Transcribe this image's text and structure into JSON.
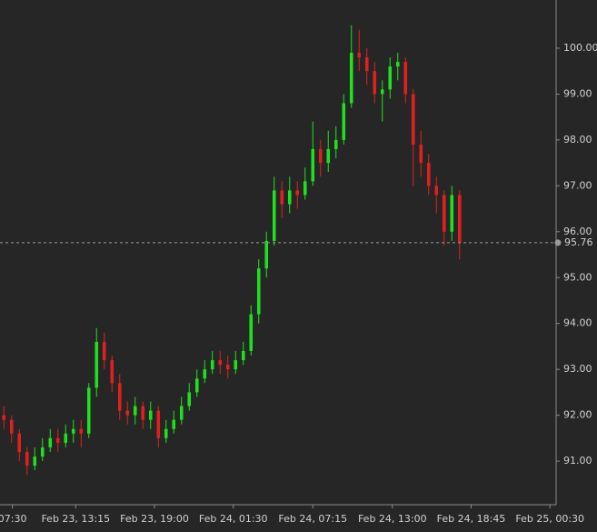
{
  "chart_data": {
    "type": "candlestick",
    "up_color": "#1ee01e",
    "down_color": "#e02020",
    "x": [
      0.5,
      1.5,
      2.5,
      3.5,
      4.5,
      5.5,
      6.5,
      7.5,
      8.5,
      9.5,
      10.5,
      11.5,
      12.5,
      13.5,
      14.5,
      15.5,
      16.5,
      17.5,
      18.5,
      19.5,
      20.5,
      21.5,
      22.5,
      23.5,
      24.5,
      25.5,
      26.5,
      27.5,
      28.5,
      29.5,
      30.5,
      31.5,
      32.5,
      33.5,
      34.5,
      35.5,
      36.5,
      37.5,
      38.5,
      39.5,
      40.5,
      41.5,
      42.5,
      43.5,
      44.5,
      45.5,
      46.5,
      47.5,
      48.5,
      49.5,
      50.5,
      51.5,
      52.5,
      53.5,
      54.5,
      55.5,
      56.5,
      57.5,
      58.5,
      59.5
    ],
    "open": [
      92.0,
      91.9,
      91.6,
      91.2,
      90.9,
      91.1,
      91.3,
      91.5,
      91.4,
      91.6,
      91.7,
      91.6,
      92.6,
      93.6,
      93.2,
      92.7,
      92.1,
      92.0,
      92.2,
      91.9,
      92.1,
      91.5,
      91.7,
      91.9,
      92.2,
      92.5,
      92.8,
      93.0,
      93.2,
      93.1,
      93.0,
      93.2,
      93.4,
      94.2,
      95.2,
      95.8,
      96.9,
      96.6,
      96.9,
      96.8,
      97.1,
      97.8,
      97.5,
      97.8,
      98.0,
      98.8,
      99.9,
      99.8,
      99.5,
      99.0,
      99.1,
      99.6,
      99.7,
      99.0,
      97.9,
      97.5,
      97.0,
      96.8,
      96.0,
      96.8
    ],
    "high": [
      92.2,
      92.0,
      91.7,
      91.3,
      91.3,
      91.5,
      91.7,
      91.7,
      91.8,
      91.9,
      91.9,
      92.7,
      93.9,
      93.8,
      93.3,
      92.9,
      92.3,
      92.4,
      92.3,
      92.3,
      92.2,
      91.9,
      92.1,
      92.4,
      92.7,
      93.0,
      93.2,
      93.4,
      93.4,
      93.3,
      93.4,
      93.6,
      94.4,
      95.4,
      96.0,
      97.2,
      97.1,
      97.2,
      97.1,
      97.4,
      98.4,
      98.0,
      98.2,
      98.3,
      99.0,
      100.5,
      100.4,
      100.0,
      99.7,
      99.3,
      99.8,
      99.9,
      99.8,
      99.1,
      98.2,
      97.7,
      97.2,
      96.9,
      97.0,
      96.9
    ],
    "low": [
      91.7,
      91.4,
      91.0,
      90.7,
      90.8,
      91.0,
      91.2,
      91.2,
      91.3,
      91.4,
      91.3,
      91.5,
      92.4,
      93.0,
      92.5,
      91.9,
      91.8,
      91.8,
      91.7,
      91.7,
      91.3,
      91.4,
      91.6,
      91.8,
      92.1,
      92.4,
      92.7,
      92.9,
      92.9,
      92.8,
      92.9,
      93.1,
      93.3,
      94.0,
      95.0,
      95.7,
      96.3,
      96.4,
      96.5,
      96.7,
      97.0,
      97.2,
      97.3,
      97.6,
      97.9,
      98.7,
      99.5,
      99.2,
      98.8,
      98.4,
      98.9,
      99.3,
      98.8,
      97.0,
      97.2,
      96.8,
      96.4,
      95.7,
      95.8,
      95.4
    ],
    "close": [
      91.9,
      91.6,
      91.2,
      90.9,
      91.1,
      91.3,
      91.5,
      91.4,
      91.6,
      91.7,
      91.6,
      92.6,
      93.6,
      93.2,
      92.7,
      92.1,
      92.0,
      92.2,
      91.9,
      92.1,
      91.5,
      91.7,
      91.9,
      92.2,
      92.5,
      92.8,
      93.0,
      93.2,
      93.1,
      93.0,
      93.2,
      93.4,
      94.2,
      95.2,
      95.8,
      96.9,
      96.6,
      96.9,
      96.8,
      97.1,
      97.8,
      97.5,
      97.8,
      98.0,
      98.8,
      99.9,
      99.8,
      99.5,
      99.0,
      99.1,
      99.6,
      99.7,
      99.0,
      97.9,
      97.5,
      97.0,
      96.8,
      96.0,
      96.8,
      95.76
    ],
    "last_price": 95.76,
    "xlim": [
      0,
      72
    ],
    "xticks": [
      {
        "value": 1.6,
        "label": "07:30"
      },
      {
        "value": 9.8,
        "label": "Feb 23, 13:15"
      },
      {
        "value": 20,
        "label": "Feb 23, 19:00"
      },
      {
        "value": 30.2,
        "label": "Feb 24, 01:30"
      },
      {
        "value": 40.5,
        "label": "Feb 24, 07:15"
      },
      {
        "value": 50.8,
        "label": "Feb 24, 13:00"
      },
      {
        "value": 61,
        "label": "Feb 24, 18:45"
      },
      {
        "value": 71.2,
        "label": "Feb 25, 00:30"
      }
    ],
    "ylim": [
      90.05,
      101.05
    ],
    "yticks": [
      {
        "value": 91,
        "label": "91.00"
      },
      {
        "value": 92,
        "label": "92.00"
      },
      {
        "value": 93,
        "label": "93.00"
      },
      {
        "value": 94,
        "label": "94.00"
      },
      {
        "value": 95,
        "label": "95.00"
      },
      {
        "value": 96,
        "label": "96.00"
      },
      {
        "value": 97,
        "label": "97.00"
      },
      {
        "value": 98,
        "label": "98.00"
      },
      {
        "value": 99,
        "label": "99.00"
      },
      {
        "value": 100,
        "label": "100.00"
      }
    ],
    "grid": false
  }
}
